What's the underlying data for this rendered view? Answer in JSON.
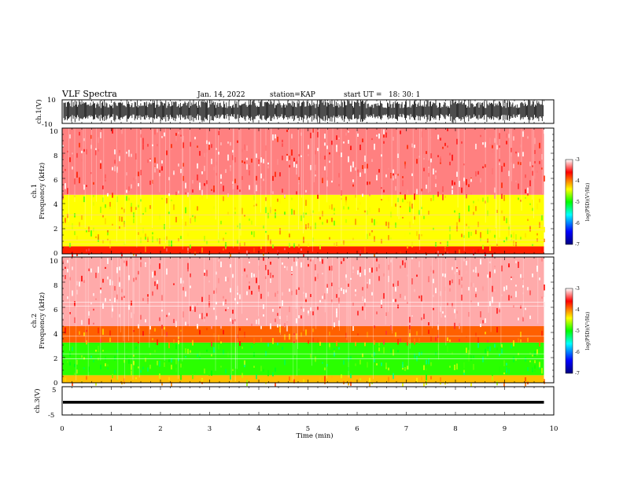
{
  "header": {
    "title": "VLF Spectra",
    "date": "Jan. 14, 2022",
    "station": "station=KAP",
    "start": "start UT =   18: 30: 1"
  },
  "chart_data": [
    {
      "type": "line",
      "panel": "ch.1 waveform",
      "ylabel": "ch.1(V)",
      "ylim": [
        -10,
        10
      ],
      "yticks": [
        "10",
        "-10"
      ],
      "xlim": [
        0,
        10
      ],
      "data_extent_min": 9.8,
      "series_description": "dense oscillating voltage, amplitude mostly 3-10 V"
    },
    {
      "type": "heatmap",
      "panel": "ch.1 spectrogram",
      "ylabel": "ch.1\nFrequency (kHz)",
      "ylim": [
        0,
        10
      ],
      "yticks": [
        "0",
        "2",
        "4",
        "6",
        "8",
        "10"
      ],
      "xlim": [
        0,
        10
      ],
      "data_extent_min": 9.8,
      "colorbar": {
        "label": "log(PSD)(V²/Hz)",
        "range": [
          -7,
          -3
        ],
        "ticks": [
          "-3",
          "-4",
          "-5",
          "-6",
          "-7"
        ],
        "colors": [
          "#000080",
          "#0000ff",
          "#00ffff",
          "#00ff00",
          "#ffff00",
          "#ff0000",
          "#ffffff"
        ]
      },
      "bands_kHz": [
        {
          "from": 0.0,
          "to": 0.6,
          "level": -3.7
        },
        {
          "from": 0.6,
          "to": 4.7,
          "level": -4.4
        },
        {
          "from": 4.7,
          "to": 10.0,
          "level": -3.3
        }
      ],
      "lines_kHz": [
        0.8,
        1.1,
        1.9,
        2.2,
        3.1
      ]
    },
    {
      "type": "heatmap",
      "panel": "ch.2 spectrogram",
      "ylabel": "ch.2\nFrequency (kHz)",
      "ylim": [
        0,
        10
      ],
      "yticks": [
        "0",
        "2",
        "4",
        "6",
        "8",
        "10"
      ],
      "xlim": [
        0,
        10
      ],
      "data_extent_min": 9.8,
      "colorbar": {
        "label": "log(PSD)(V²/Hz)",
        "range": [
          -7,
          -3
        ],
        "ticks": [
          "-3",
          "-4",
          "-5",
          "-6",
          "-7"
        ],
        "colors": [
          "#000080",
          "#0000ff",
          "#00ffff",
          "#00ff00",
          "#ffff00",
          "#ff0000",
          "#ffffff"
        ]
      },
      "bands_kHz": [
        {
          "from": 0.0,
          "to": 0.6,
          "level": -4.2
        },
        {
          "from": 0.6,
          "to": 3.2,
          "level": -4.9
        },
        {
          "from": 3.2,
          "to": 4.5,
          "level": -3.9
        },
        {
          "from": 4.5,
          "to": 10.0,
          "level": -3.2
        }
      ],
      "lines_kHz": [
        1.9,
        2.3,
        3.7,
        6.1,
        6.4
      ]
    },
    {
      "type": "line",
      "panel": "ch.3 waveform",
      "ylabel": "ch.3(V)",
      "ylim": [
        -5,
        5
      ],
      "yticks": [
        "5",
        "-5"
      ],
      "xlim": [
        0,
        10
      ],
      "data_extent_min": 9.8,
      "level_band": [
        -1.0,
        0.0
      ]
    }
  ],
  "xaxis": {
    "label": "Time (min)",
    "ticks": [
      "0",
      "1",
      "2",
      "3",
      "4",
      "5",
      "6",
      "7",
      "8",
      "9",
      "10"
    ]
  }
}
